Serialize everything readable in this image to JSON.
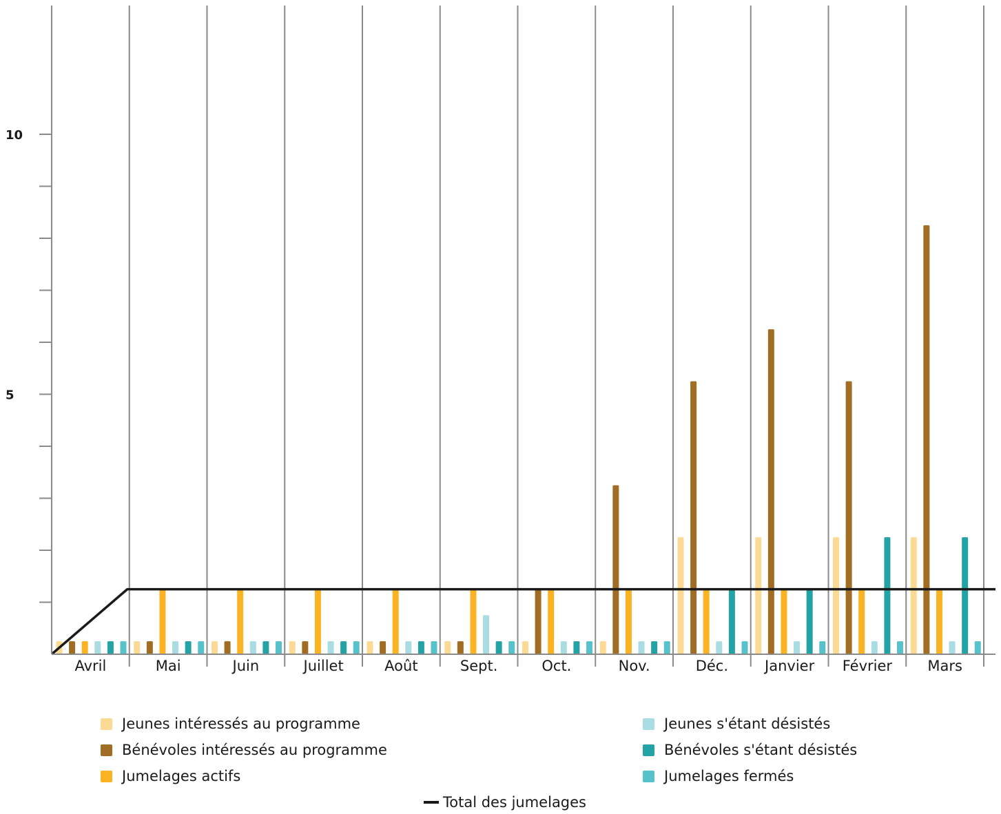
{
  "chart_data": {
    "type": "bar",
    "categories": [
      "Avril",
      "Mai",
      "Juin",
      "Juillet",
      "Août",
      "Sept.",
      "Oct.",
      "Nov.",
      "Déc.",
      "Janvier",
      "Février",
      "Mars"
    ],
    "y_ticks": [
      "5",
      "10"
    ],
    "ylim": [
      0,
      12.5
    ],
    "grid": "vertical",
    "legend_position": "bottom",
    "series": [
      {
        "name": "Jeunes intéressés au programme",
        "color": "#FDDA93",
        "values": [
          0.25,
          0.25,
          0.25,
          0.25,
          0.25,
          0.25,
          0.25,
          0.25,
          2.25,
          2.25,
          2.25,
          2.25
        ]
      },
      {
        "name": "Bénévoles intéressés au programme",
        "color": "#A16D24",
        "values": [
          0.25,
          0.25,
          0.25,
          0.25,
          0.25,
          0.25,
          1.25,
          3.25,
          5.25,
          6.25,
          5.25,
          8.25
        ]
      },
      {
        "name": "Jumelages actifs",
        "color": "#FBB323",
        "values": [
          0.25,
          1.25,
          1.25,
          1.25,
          1.25,
          1.25,
          1.25,
          1.25,
          1.25,
          1.25,
          1.25,
          1.25
        ]
      },
      {
        "name": "Jeunes s'étant désistés",
        "color": "#A9DCE3",
        "values": [
          0.25,
          0.25,
          0.25,
          0.25,
          0.25,
          0.75,
          0.25,
          0.25,
          0.25,
          0.25,
          0.25,
          0.25
        ]
      },
      {
        "name": "Bénévoles s'étant désistés",
        "color": "#24A3A6",
        "values": [
          0.25,
          0.25,
          0.25,
          0.25,
          0.25,
          0.25,
          0.25,
          0.25,
          1.25,
          1.25,
          2.25,
          2.25
        ]
      },
      {
        "name": "Jumelages fermés",
        "color": "#58C2CC",
        "values": [
          0.25,
          0.25,
          0.25,
          0.25,
          0.25,
          0.25,
          0.25,
          0.25,
          0.25,
          0.25,
          0.25,
          0.25
        ]
      }
    ],
    "line_series": {
      "name": "Total des jumelages",
      "color": "#1a1a1a",
      "values": [
        0,
        1.25,
        1.25,
        1.25,
        1.25,
        1.25,
        1.25,
        1.25,
        1.25,
        1.25,
        1.25,
        1.25
      ]
    }
  },
  "legend": {
    "items": [
      {
        "label": "Jeunes intéressés au programme",
        "color": "#FDDA93"
      },
      {
        "label": "Bénévoles intéressés au programme",
        "color": "#A16D24"
      },
      {
        "label": "Jumelages actifs",
        "color": "#FBB323"
      },
      {
        "label": "Jeunes s'étant désistés",
        "color": "#A9DCE3"
      },
      {
        "label": "Bénévoles s'étant désistés",
        "color": "#24A3A6"
      },
      {
        "label": "Jumelages fermés",
        "color": "#58C2CC"
      }
    ],
    "line_label": "Total des jumelages"
  }
}
